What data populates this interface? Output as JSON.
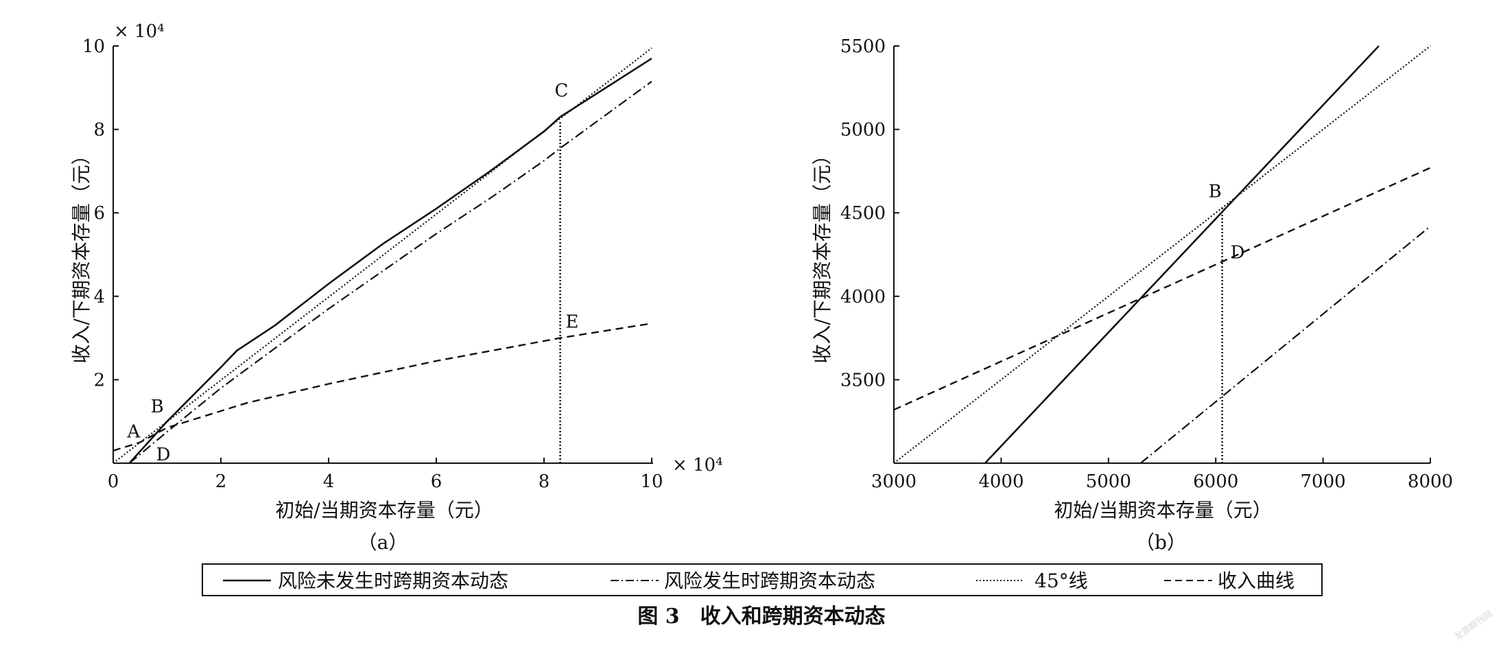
{
  "figure": {
    "caption": "图 3　收入和跨期资本动态",
    "watermark": "龙源期刊网",
    "legend": {
      "items": [
        {
          "label": "风险未发生时跨期资本动态",
          "style": "solid"
        },
        {
          "label": "风险发生时跨期资本动态",
          "style": "dashdot"
        },
        {
          "label": "45°线",
          "style": "dotted"
        },
        {
          "label": "收入曲线",
          "style": "dashed"
        }
      ]
    }
  },
  "chart_data": [
    {
      "type": "line",
      "panel_label": "（a）",
      "xlabel": "初始/当期资本存量（元）",
      "ylabel": "收入/下期资本存量（元）",
      "x_multiplier": "× 10⁴",
      "y_multiplier": "× 10⁴",
      "xlim": [
        0,
        10
      ],
      "ylim": [
        0,
        10
      ],
      "x_ticks": [
        0,
        2,
        4,
        6,
        8,
        10
      ],
      "x_tick_labels": [
        "0",
        "2",
        "4",
        "6",
        "8",
        "10"
      ],
      "y_ticks": [
        2,
        4,
        6,
        8,
        10
      ],
      "y_tick_labels": [
        "2",
        "4",
        "6",
        "8",
        "10"
      ],
      "grid": false,
      "series": [
        {
          "style": "solid",
          "x": [
            0.3,
            1.0,
            2.0,
            2.3,
            3.0,
            4.0,
            5.0,
            6.0,
            7.0,
            8.0,
            8.3,
            10.0
          ],
          "y": [
            0.0,
            1.0,
            2.3,
            2.7,
            3.3,
            4.3,
            5.25,
            6.1,
            7.0,
            7.95,
            8.3,
            9.7
          ]
        },
        {
          "style": "dashdot",
          "x": [
            0.3,
            1.0,
            2.0,
            3.0,
            4.0,
            5.0,
            6.0,
            7.0,
            8.0,
            8.3,
            10.0
          ],
          "y": [
            0.0,
            0.75,
            1.8,
            2.75,
            3.7,
            4.6,
            5.5,
            6.35,
            7.25,
            7.55,
            9.15
          ]
        },
        {
          "style": "dotted",
          "x": [
            0.0,
            10.0
          ],
          "y": [
            0.0,
            9.95
          ]
        },
        {
          "style": "dashed",
          "x": [
            0.0,
            0.5,
            1.0,
            2.5,
            4.0,
            6.0,
            8.3,
            10.0
          ],
          "y": [
            0.3,
            0.5,
            0.85,
            1.45,
            1.9,
            2.45,
            3.0,
            3.35
          ]
        },
        {
          "style": "dotted-vertical",
          "x": [
            8.3,
            8.3
          ],
          "y": [
            0.0,
            8.2
          ]
        }
      ],
      "annotations": [
        {
          "text": "A",
          "x": 0.45,
          "y": 0.55
        },
        {
          "text": "B",
          "x": 0.9,
          "y": 0.95
        },
        {
          "text": "C",
          "x": 8.3,
          "y": 8.3
        },
        {
          "text": "D",
          "x": 0.9,
          "y": 0.2
        },
        {
          "text": "E",
          "x": 8.3,
          "y": 3.05
        }
      ]
    },
    {
      "type": "line",
      "panel_label": "（b）",
      "xlabel": "初始/当期资本存量（元）",
      "ylabel": "收入/下期资本存量（元）",
      "xlim": [
        3000,
        8000
      ],
      "ylim": [
        3000,
        5500
      ],
      "x_ticks": [
        3000,
        4000,
        5000,
        6000,
        7000,
        8000
      ],
      "x_tick_labels": [
        "3000",
        "4000",
        "5000",
        "6000",
        "7000",
        "8000"
      ],
      "y_ticks": [
        3500,
        4000,
        4500,
        5000,
        5500
      ],
      "y_tick_labels": [
        "3500",
        "4000",
        "4500",
        "5000",
        "5500"
      ],
      "grid": false,
      "series": [
        {
          "style": "solid",
          "x": [
            3850,
            7520
          ],
          "y": [
            3000,
            5500
          ]
        },
        {
          "style": "dashdot",
          "x": [
            5300,
            8000
          ],
          "y": [
            3000,
            4420
          ]
        },
        {
          "style": "dotted",
          "x": [
            3000,
            8000
          ],
          "y": [
            3000,
            5500
          ]
        },
        {
          "style": "dashed",
          "x": [
            3000,
            8000
          ],
          "y": [
            3320,
            4770
          ]
        },
        {
          "style": "dotted-vertical",
          "x": [
            6060,
            6060
          ],
          "y": [
            3000,
            4530
          ]
        }
      ],
      "annotations": [
        {
          "text": "B",
          "x": 6060,
          "y": 4545
        },
        {
          "text": "D",
          "x": 6060,
          "y": 4260
        }
      ]
    }
  ]
}
